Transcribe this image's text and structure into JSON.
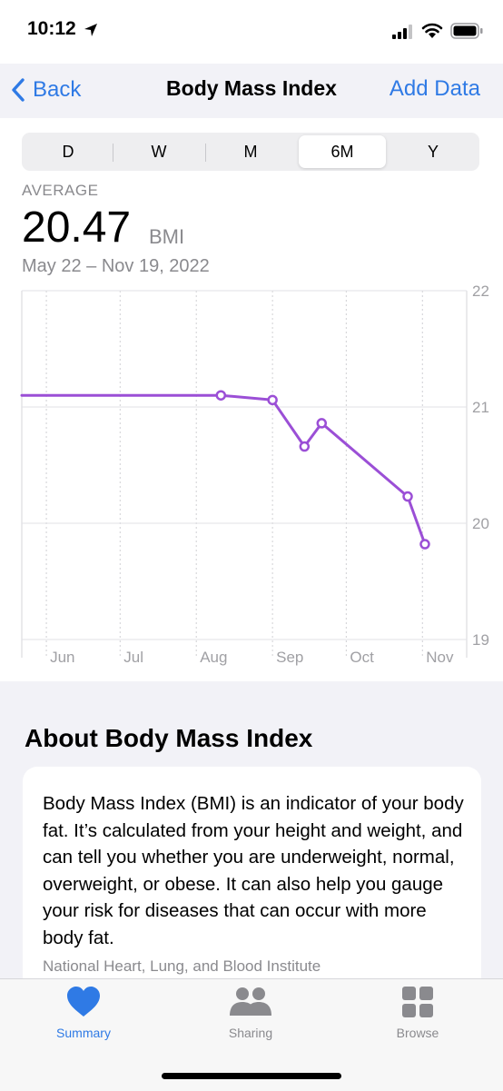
{
  "status_bar": {
    "time": "10:12"
  },
  "nav": {
    "back_label": "Back",
    "title": "Body Mass Index",
    "action_label": "Add Data"
  },
  "segments": [
    "D",
    "W",
    "M",
    "6M",
    "Y"
  ],
  "selected_segment": "6M",
  "summary": {
    "label": "AVERAGE",
    "value": "20.47",
    "unit": "BMI",
    "date_range": "May 22 – Nov 19, 2022"
  },
  "chart_data": {
    "type": "line",
    "x_months": [
      "Jun",
      "Jul",
      "Aug",
      "Sep",
      "Oct",
      "Nov"
    ],
    "y_ticks": [
      "22",
      "21",
      "20",
      "19"
    ],
    "ylim": [
      19,
      22
    ],
    "xlim": [
      "2022-05-22",
      "2022-11-19"
    ],
    "grid": true,
    "color": "#9b4fd6",
    "series": [
      {
        "points": [
          {
            "x": "2022-05-22",
            "y": 21.1
          },
          {
            "x": "2022-08-11",
            "y": 21.1
          },
          {
            "x": "2022-09-01",
            "y": 21.06
          },
          {
            "x": "2022-09-14",
            "y": 20.66
          },
          {
            "x": "2022-09-21",
            "y": 20.86
          },
          {
            "x": "2022-10-26",
            "y": 20.23
          },
          {
            "x": "2022-11-02",
            "y": 19.82
          }
        ],
        "markers": [
          false,
          true,
          true,
          true,
          true,
          true,
          true
        ]
      }
    ]
  },
  "about": {
    "title": "About Body Mass Index",
    "text": "Body Mass Index (BMI) is an indicator of your body fat. It’s calculated from your height and weight, and can tell you whether you are underweight, normal, overweight, or obese. It can also help you gauge your risk for diseases that can occur with more body fat.",
    "source": "National Heart, Lung, and Blood Institute"
  },
  "tabs": [
    {
      "label": "Summary",
      "icon": "heart-icon",
      "active": true
    },
    {
      "label": "Sharing",
      "icon": "people-icon",
      "active": false
    },
    {
      "label": "Browse",
      "icon": "grid-icon",
      "active": false
    }
  ],
  "colors": {
    "accent": "#2f7ae5",
    "chart_line": "#9b4fd6",
    "inactive": "#8a8a8e"
  }
}
